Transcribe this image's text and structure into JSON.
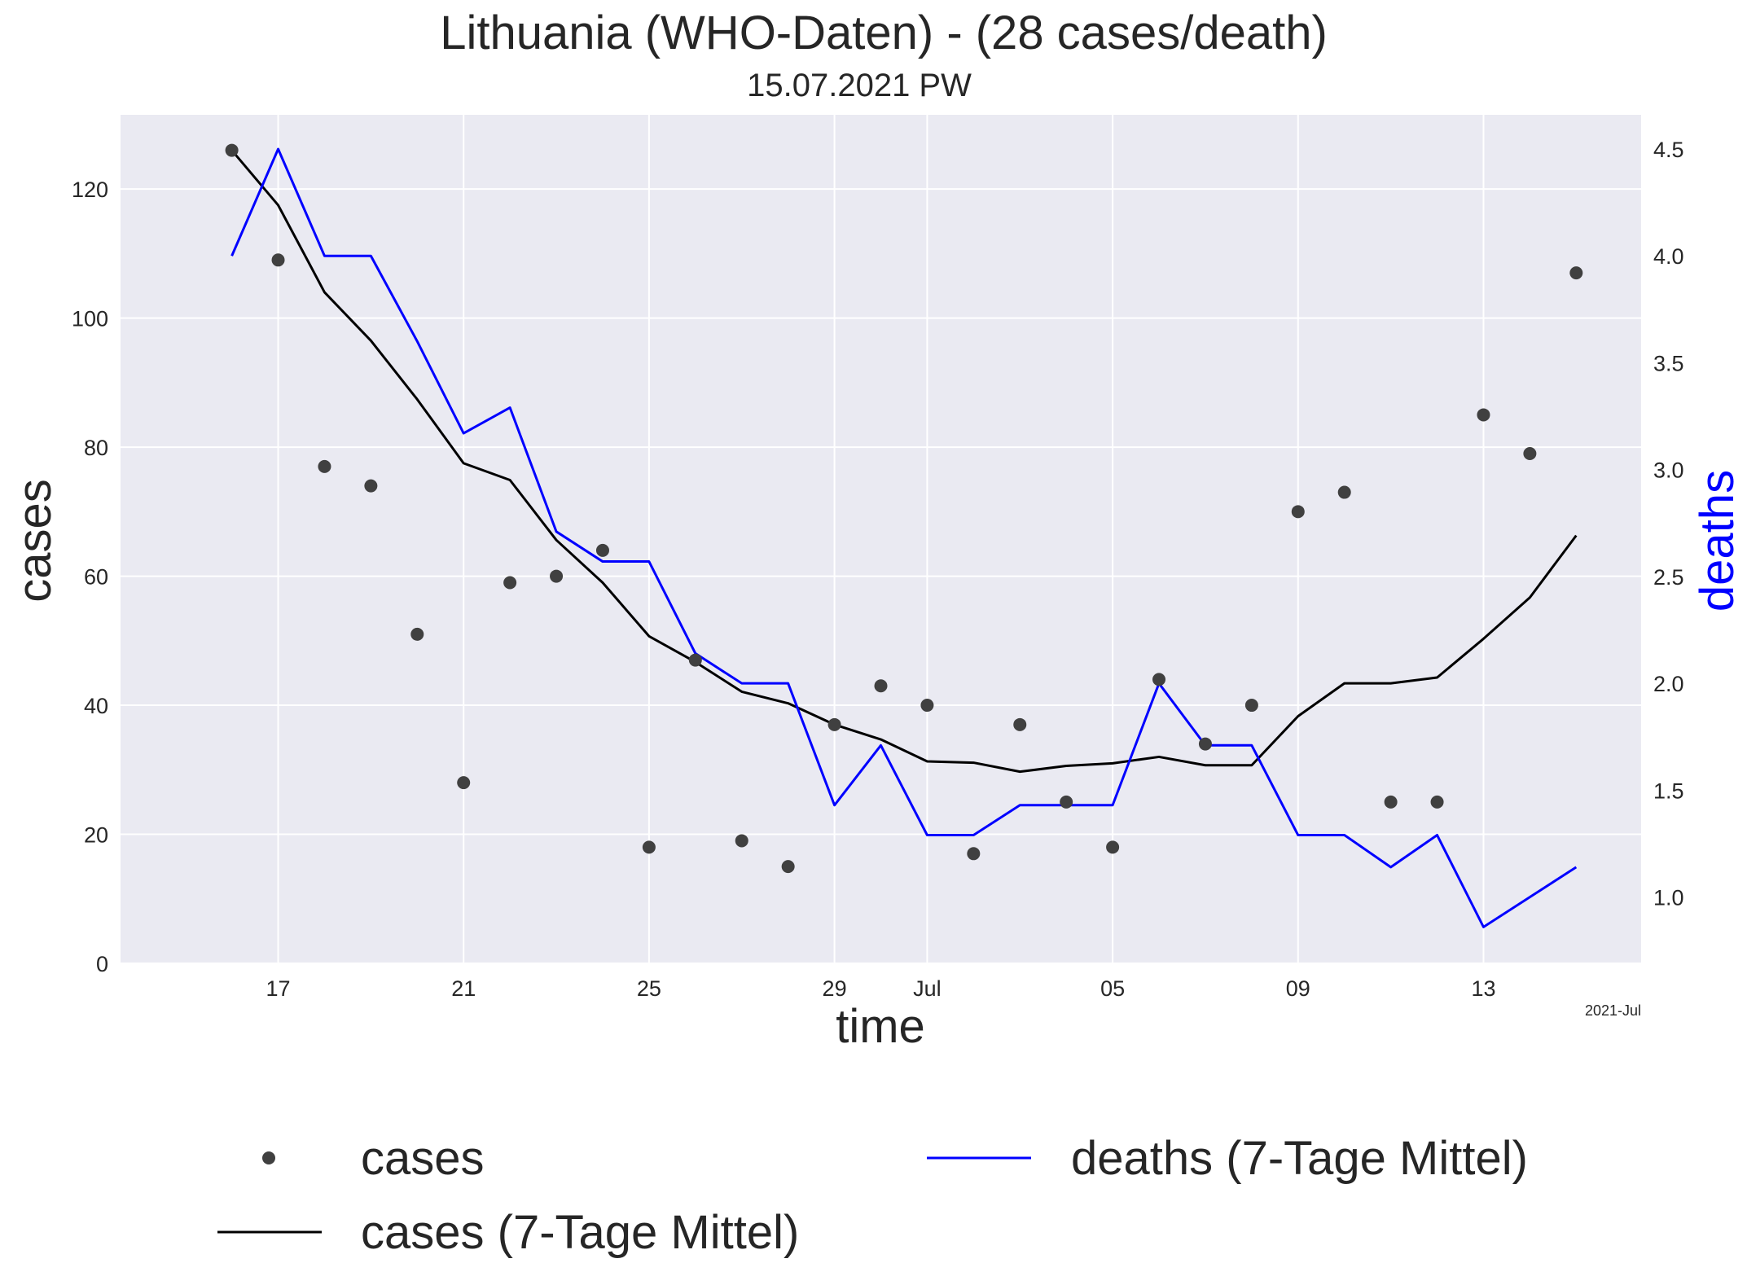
{
  "chart_data": {
    "type": "line",
    "title": "Lithuania (WHO-Daten) - (28 cases/death)",
    "subtitle": "15.07.2021 PW",
    "xlabel": "time",
    "ylabel": "cases",
    "y2label": "deaths",
    "x_offset_label": "2021-Jul",
    "x": [
      "2021-06-16",
      "2021-06-17",
      "2021-06-18",
      "2021-06-19",
      "2021-06-20",
      "2021-06-21",
      "2021-06-22",
      "2021-06-23",
      "2021-06-24",
      "2021-06-25",
      "2021-06-26",
      "2021-06-27",
      "2021-06-28",
      "2021-06-29",
      "2021-06-30",
      "2021-07-01",
      "2021-07-02",
      "2021-07-03",
      "2021-07-04",
      "2021-07-05",
      "2021-07-06",
      "2021-07-07",
      "2021-07-08",
      "2021-07-09",
      "2021-07-10",
      "2021-07-11",
      "2021-07-12",
      "2021-07-13",
      "2021-07-14",
      "2021-07-15"
    ],
    "xlim": [
      "2021-06-13.6",
      "2021-07-16.4"
    ],
    "xticks": [
      {
        "date": "2021-06-17",
        "label": "17"
      },
      {
        "date": "2021-06-21",
        "label": "21"
      },
      {
        "date": "2021-06-25",
        "label": "25"
      },
      {
        "date": "2021-06-29",
        "label": "29"
      },
      {
        "date": "2021-07-01",
        "label": "Jul"
      },
      {
        "date": "2021-07-05",
        "label": "05"
      },
      {
        "date": "2021-07-09",
        "label": "09"
      },
      {
        "date": "2021-07-13",
        "label": "13"
      }
    ],
    "ylim": [
      0,
      131.5
    ],
    "yticks": [
      0,
      20,
      40,
      60,
      80,
      100,
      120
    ],
    "y2lim": [
      0.69,
      4.66
    ],
    "y2ticks": [
      "1.0",
      "1.5",
      "2.0",
      "2.5",
      "3.0",
      "3.5",
      "4.0",
      "4.5"
    ],
    "grid": true,
    "legend_position": "bottom",
    "series": [
      {
        "name": "cases",
        "kind": "scatter",
        "axis": "left",
        "color": "#404040",
        "values": [
          126,
          109,
          77,
          74,
          51,
          28,
          59,
          60,
          64,
          18,
          47,
          19,
          15,
          37,
          43,
          40,
          17,
          37,
          25,
          18,
          44,
          34,
          40,
          70,
          73,
          25,
          25,
          85,
          79,
          107
        ]
      },
      {
        "name": "cases (7-Tage Mittel)",
        "kind": "line",
        "axis": "left",
        "color": "#000000",
        "values": [
          126,
          117.5,
          104,
          96.5,
          87.4,
          77.5,
          74.9,
          65.6,
          59,
          50.7,
          46.7,
          42.1,
          40.3,
          37,
          34.7,
          31.3,
          31.1,
          29.7,
          30.6,
          31,
          32,
          30.7,
          30.7,
          38.3,
          43.4,
          43.4,
          44.3,
          50.3,
          56.7,
          66.3
        ]
      },
      {
        "name": "deaths (7-Tage Mittel)",
        "kind": "line",
        "axis": "right",
        "color": "#0000ff",
        "values": [
          4.0,
          4.5,
          4.0,
          4.0,
          3.6,
          3.17,
          3.29,
          2.71,
          2.57,
          2.57,
          2.14,
          2.0,
          2.0,
          1.43,
          1.71,
          1.29,
          1.29,
          1.43,
          1.43,
          1.43,
          2.0,
          1.71,
          1.71,
          1.29,
          1.29,
          1.14,
          1.29,
          0.86,
          1.0,
          1.14
        ]
      }
    ]
  }
}
